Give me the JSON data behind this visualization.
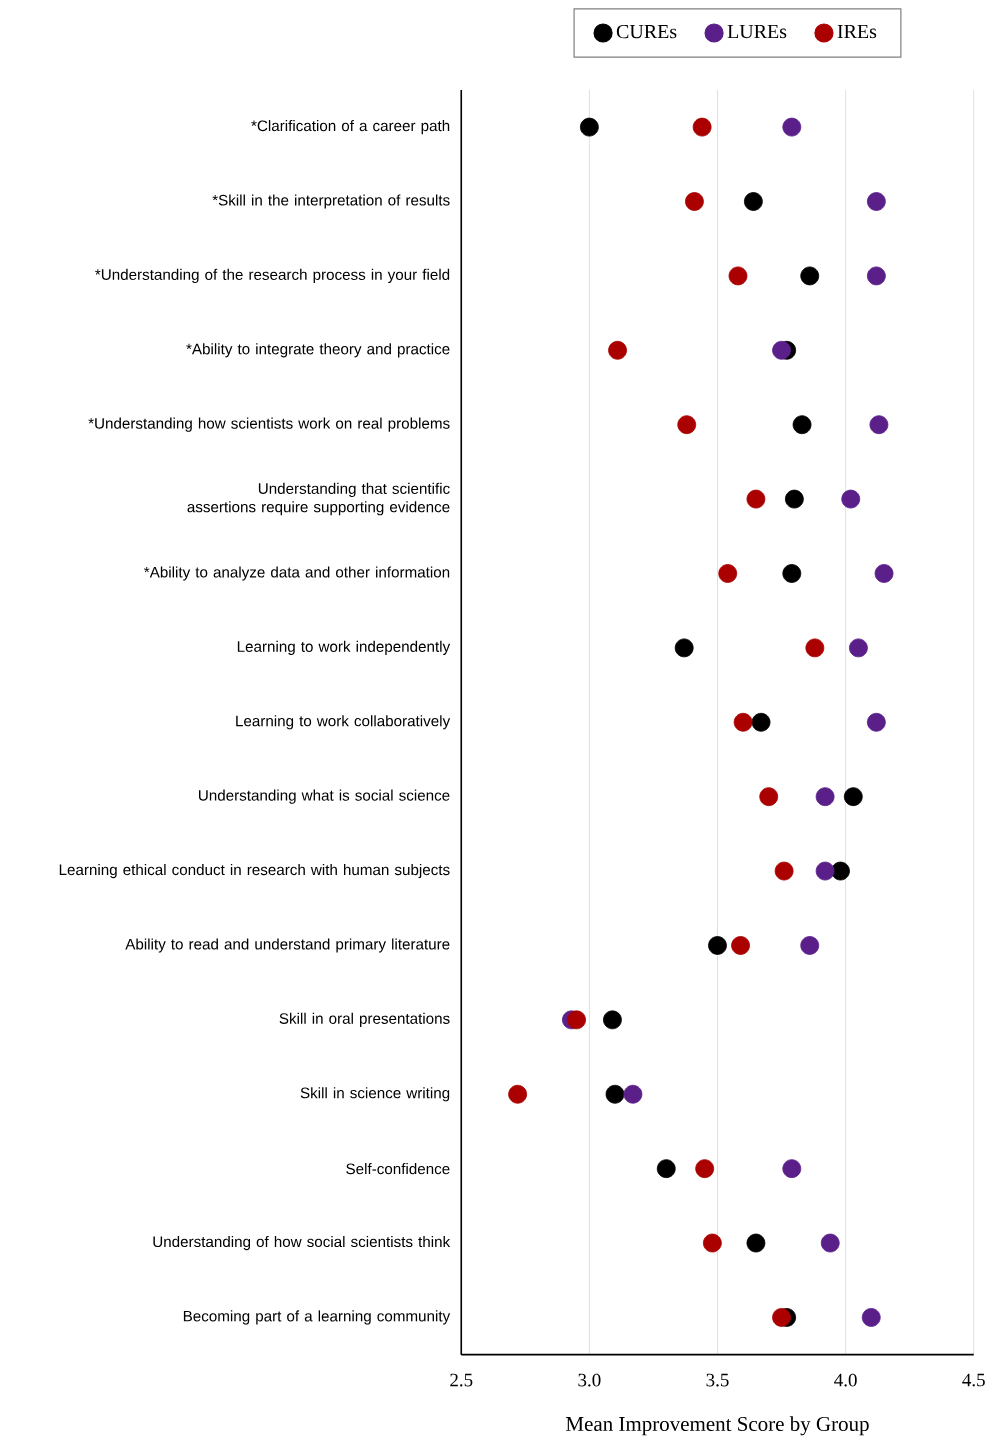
{
  "chart_data": {
    "type": "scatter",
    "orientation": "horizontal",
    "categories": [
      "*Clarification of a career path",
      "*Skill in the interpretation of results",
      "*Understanding of the research process in your field",
      "*Ability to integrate theory and practice",
      "*Understanding how scientists work on real problems",
      "Understanding that scientific assertions require supporting evidence",
      "*Ability to analyze data and other information",
      "Learning to work independently",
      "Learning to work collaboratively",
      "Understanding what is social science",
      "Learning ethical conduct in research with human subjects",
      "Ability to read and understand primary literature",
      "Skill in oral presentations",
      "Skill in science writing",
      "Self-confidence",
      "Understanding of how social scientists think",
      "Becoming part of a learning community"
    ],
    "series": [
      {
        "name": "CUREs",
        "color": "#000000",
        "values": [
          3.0,
          3.64,
          3.86,
          3.77,
          3.83,
          3.8,
          3.79,
          3.37,
          3.67,
          4.03,
          3.98,
          3.5,
          3.09,
          3.1,
          3.3,
          3.65,
          3.77
        ]
      },
      {
        "name": "LUREs",
        "color": "#5b1f8a",
        "values": [
          3.79,
          4.12,
          4.12,
          3.75,
          4.13,
          4.02,
          4.15,
          4.05,
          4.12,
          3.92,
          3.92,
          3.86,
          2.93,
          3.17,
          3.79,
          3.94,
          4.1
        ]
      },
      {
        "name": "IREs",
        "color": "#aa0000",
        "values": [
          3.44,
          3.41,
          3.58,
          3.11,
          3.38,
          3.65,
          3.54,
          3.88,
          3.6,
          3.7,
          3.76,
          3.59,
          2.95,
          2.72,
          3.45,
          3.48,
          3.75
        ]
      }
    ],
    "xlabel": "Mean Improvement Score by Group",
    "xlim": [
      2.5,
      4.5
    ],
    "xticks": [
      {
        "value": 2.5,
        "label": "2.5"
      },
      {
        "value": 3.0,
        "label": "3.0"
      },
      {
        "value": 3.5,
        "label": "3.5"
      },
      {
        "value": 4.0,
        "label": "4.0"
      },
      {
        "value": 4.5,
        "label": "4.5"
      }
    ],
    "grid": "x",
    "legend": "top",
    "marker": "circle"
  }
}
